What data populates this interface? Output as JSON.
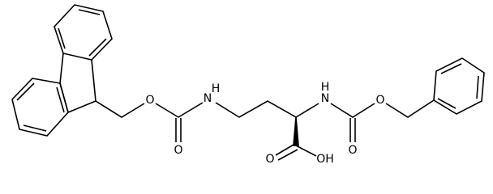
{
  "atoms": {
    "fmoc_ester_o": "O",
    "fmoc_carbonyl_o": "O",
    "side_chain_nh": "N",
    "side_chain_h": "H",
    "alpha_nh": "N",
    "alpha_h": "H",
    "cbz_carbonyl_o": "O",
    "cbz_ester_o": "O",
    "acid_carbonyl_o": "O",
    "acid_oh": "OH"
  }
}
